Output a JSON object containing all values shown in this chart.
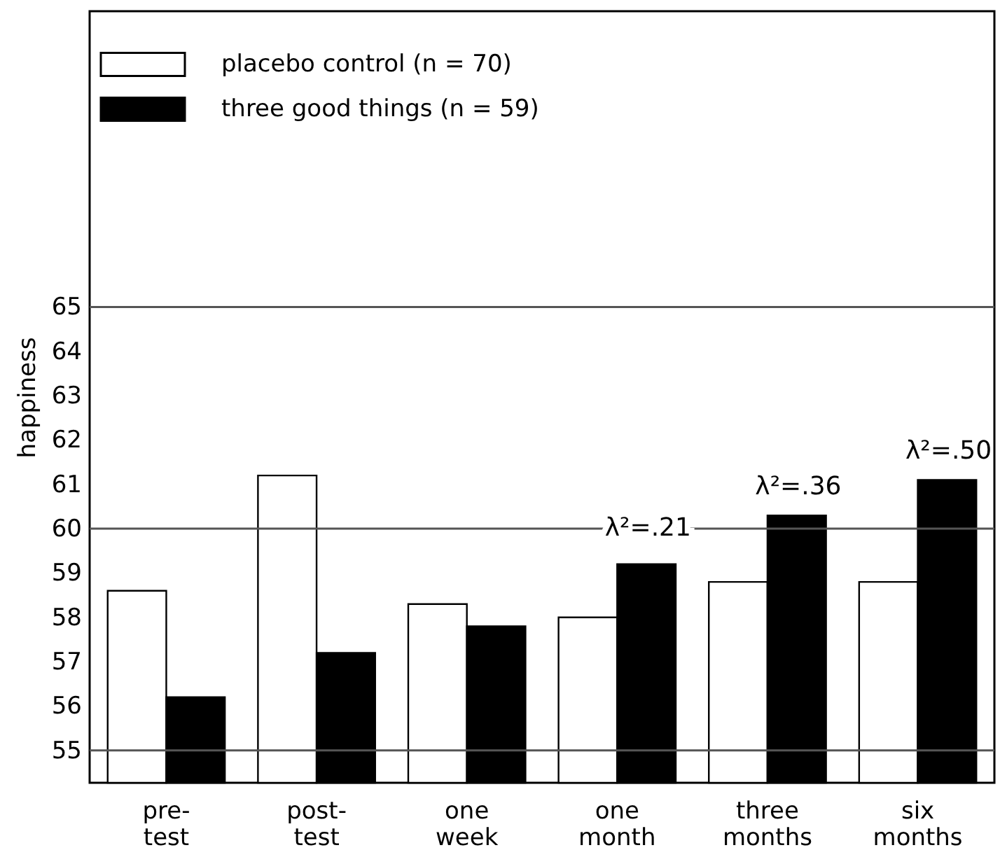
{
  "chart_data": {
    "type": "bar",
    "ylabel": "happiness",
    "categories": [
      "pre- test",
      "post- test",
      "one week",
      "one month",
      "three months",
      "six months"
    ],
    "series": [
      {
        "name": "placebo control (n = 70)",
        "color": "#ffffff",
        "values": [
          58.6,
          61.2,
          58.3,
          58.0,
          58.8,
          58.8
        ]
      },
      {
        "name": "three good things (n = 59)",
        "color": "#000000",
        "values": [
          56.2,
          57.2,
          57.8,
          59.2,
          60.3,
          61.1
        ]
      }
    ],
    "ylim": [
      54.27,
      71.67
    ],
    "yticks": [
      55,
      56,
      57,
      58,
      59,
      60,
      61,
      62,
      63,
      64,
      65
    ],
    "ref_lines": [
      {
        "axis": "y",
        "value": 55,
        "color": "#555555"
      },
      {
        "axis": "y",
        "value": 60,
        "color": "#555555"
      },
      {
        "axis": "y",
        "value": 65,
        "color": "#555555"
      }
    ],
    "annotations": [
      {
        "text": "λ²=.21",
        "x": "one month",
        "y": 60
      },
      {
        "text": "λ²=.36",
        "x": "three months",
        "y": 60.3
      },
      {
        "text": "λ²=.50",
        "x": "six months",
        "y": 61.1
      }
    ],
    "grid": false,
    "legend": "top left"
  }
}
